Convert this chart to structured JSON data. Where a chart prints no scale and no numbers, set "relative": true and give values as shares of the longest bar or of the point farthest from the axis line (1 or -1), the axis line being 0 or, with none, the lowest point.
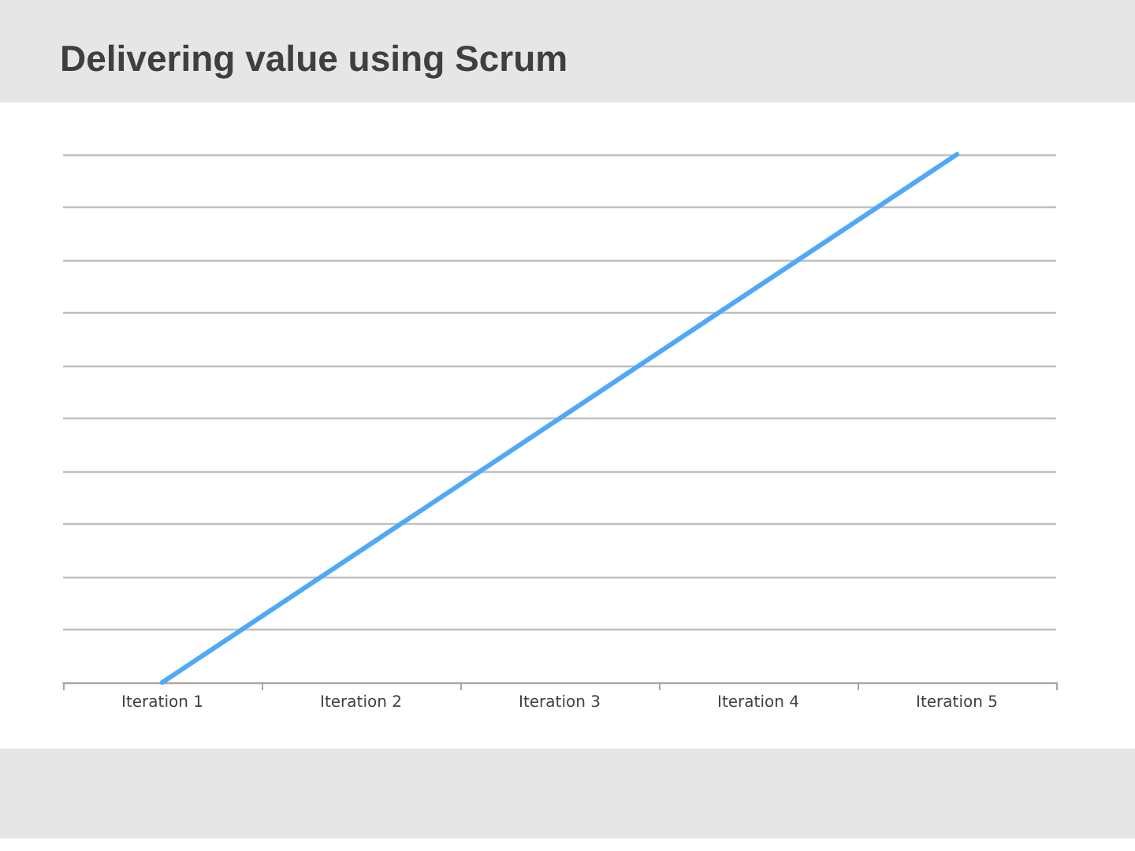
{
  "chart_data": {
    "type": "line",
    "title": "Delivering value using Scrum",
    "categories": [
      "Iteration 1",
      "Iteration 2",
      "Iteration 3",
      "Iteration 4",
      "Iteration 5"
    ],
    "series": [
      {
        "color": "#4fa8f8",
        "values": [
          0,
          0.25,
          0.5,
          0.75,
          1
        ]
      }
    ],
    "relative": true,
    "grid": "y",
    "marker": "none",
    "line_style": "solid"
  }
}
